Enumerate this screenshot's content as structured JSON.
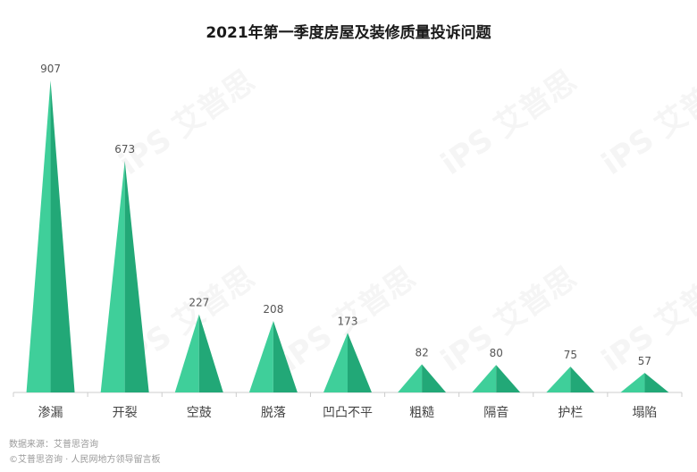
{
  "chart_data": {
    "type": "bar",
    "title": "2021年第一季度房屋及装修质量投诉问题",
    "categories": [
      "渗漏",
      "开裂",
      "空鼓",
      "脱落",
      "凹凸不平",
      "粗糙",
      "隔音",
      "护栏",
      "塌陷"
    ],
    "values": [
      907,
      673,
      227,
      208,
      173,
      82,
      80,
      75,
      57
    ],
    "xlabel": "",
    "ylabel": "",
    "ylim": [
      0,
      907
    ],
    "grid": false,
    "legend": "none",
    "colors": {
      "light": "#3fcf9a",
      "dark": "#22a877",
      "axis": "#cccccc",
      "label": "#555555"
    }
  },
  "source": "数据来源：艾普思咨询",
  "source_2": "©艾普思咨询 · 人民网地方领导留言板",
  "watermark_text": "iPS 艾普思"
}
